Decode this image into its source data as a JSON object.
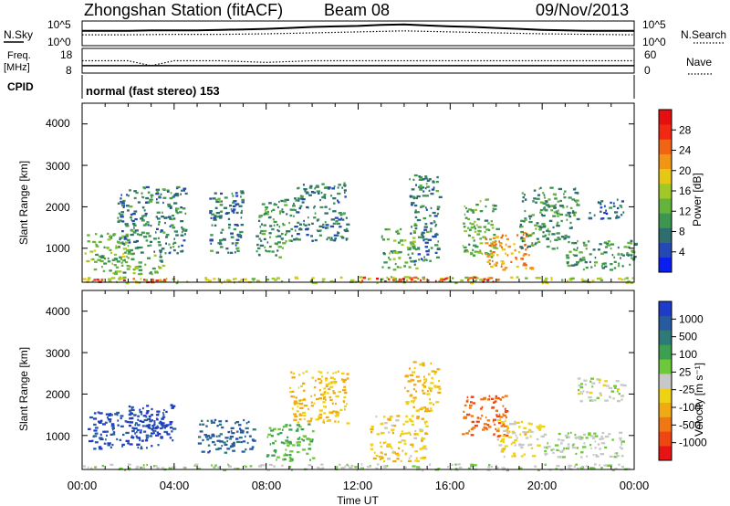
{
  "header": {
    "station": "Zhongshan Station (fitACF)",
    "beam": "Beam 08",
    "date": "09/Nov/2013"
  },
  "chart_data": [
    {
      "type": "line",
      "panel": "noise",
      "left_label": "N.Sky",
      "right_label": "N.Search",
      "left_ticks": [
        "10^5",
        "10^0"
      ],
      "right_ticks": [
        "10^5",
        "10^0"
      ],
      "series": [
        {
          "name": "N.Sky",
          "style": "solid",
          "x": [
            0,
            1,
            2,
            3,
            4,
            5,
            6,
            7,
            8,
            9,
            10,
            11,
            12,
            13,
            14,
            15,
            16,
            17,
            18,
            19,
            20,
            21,
            22,
            23,
            24
          ],
          "y": [
            3.0,
            3.0,
            3.0,
            3.1,
            3.1,
            3.1,
            3.2,
            3.3,
            3.4,
            3.6,
            3.8,
            3.9,
            4.0,
            4.2,
            4.3,
            4.1,
            3.9,
            3.8,
            3.6,
            3.4,
            3.2,
            3.1,
            3.0,
            3.0,
            3.0
          ]
        },
        {
          "name": "N.Search",
          "style": "dotted",
          "x": [
            0,
            2,
            4,
            6,
            8,
            10,
            12,
            14,
            16,
            18,
            20,
            22,
            24
          ],
          "y": [
            2.2,
            2.2,
            2.3,
            2.3,
            2.4,
            2.6,
            2.8,
            3.0,
            2.8,
            2.6,
            2.4,
            2.3,
            2.2
          ]
        }
      ]
    },
    {
      "type": "line",
      "panel": "frequency",
      "left_label": "Freq.",
      "left_unit": "[MHz]",
      "right_label": "Nave",
      "left_ticks": [
        "18",
        "8"
      ],
      "right_ticks": [
        "60",
        "0"
      ],
      "series": [
        {
          "name": "Freq",
          "style": "solid",
          "x": [
            0,
            24
          ],
          "y": [
            11,
            11
          ]
        },
        {
          "name": "Nave",
          "style": "dotted",
          "x": [
            0,
            2,
            3,
            4,
            6,
            8,
            10,
            12,
            14,
            16,
            18,
            20,
            22,
            24
          ],
          "y": [
            30,
            30,
            18,
            30,
            30,
            26,
            30,
            30,
            30,
            30,
            30,
            30,
            30,
            30
          ]
        }
      ]
    },
    {
      "type": "text",
      "panel": "cpid",
      "left_label": "CPID",
      "value": "normal (fast stereo) 153"
    },
    {
      "type": "heatmap",
      "panel": "power",
      "ylabel": "Slant Range [km]",
      "y_ticks": [
        "4000",
        "3000",
        "2000",
        "1000"
      ],
      "ylim": [
        180,
        4500
      ],
      "colorbar_label": "Power [dB]",
      "colorbar_ticks": [
        "28",
        "24",
        "20",
        "16",
        "12",
        "8",
        "4"
      ],
      "colorbar_colors": [
        "#0a1ef0",
        "#2448b4",
        "#2e6e6e",
        "#3c9650",
        "#64b43c",
        "#a0c828",
        "#e6c814",
        "#f09614",
        "#f06414",
        "#f02814",
        "#e60f0f"
      ],
      "blobs": [
        {
          "t0": 0.0,
          "t1": 24.0,
          "r0": 180,
          "r1": 330,
          "v": 16
        },
        {
          "t0": 0.2,
          "t1": 4.0,
          "r0": 200,
          "r1": 300,
          "v": 26
        },
        {
          "t0": 12.0,
          "t1": 19.0,
          "r0": 200,
          "r1": 320,
          "v": 26
        },
        {
          "t0": 0.0,
          "t1": 2.0,
          "r0": 700,
          "r1": 1400,
          "v": 14
        },
        {
          "t0": 0.5,
          "t1": 3.5,
          "r0": 400,
          "r1": 900,
          "v": 12
        },
        {
          "t0": 1.5,
          "t1": 4.5,
          "r0": 900,
          "r1": 2500,
          "v": 8
        },
        {
          "t0": 5.5,
          "t1": 7.0,
          "r0": 900,
          "r1": 2400,
          "v": 8
        },
        {
          "t0": 7.5,
          "t1": 9.0,
          "r0": 800,
          "r1": 2200,
          "v": 10
        },
        {
          "t0": 9.0,
          "t1": 11.5,
          "r0": 1200,
          "r1": 2600,
          "v": 8
        },
        {
          "t0": 13.0,
          "t1": 14.5,
          "r0": 500,
          "r1": 1500,
          "v": 12
        },
        {
          "t0": 14.2,
          "t1": 15.5,
          "r0": 700,
          "r1": 2800,
          "v": 8
        },
        {
          "t0": 16.5,
          "t1": 18.0,
          "r0": 800,
          "r1": 2200,
          "v": 12
        },
        {
          "t0": 17.5,
          "t1": 19.5,
          "r0": 500,
          "r1": 1400,
          "v": 22
        },
        {
          "t0": 19.0,
          "t1": 21.5,
          "r0": 1000,
          "r1": 2500,
          "v": 10
        },
        {
          "t0": 21.0,
          "t1": 24.0,
          "r0": 500,
          "r1": 1200,
          "v": 10
        },
        {
          "t0": 22.0,
          "t1": 23.5,
          "r0": 1700,
          "r1": 2200,
          "v": 6
        }
      ]
    },
    {
      "type": "heatmap",
      "panel": "velocity",
      "ylabel": "Slant Range [km]",
      "y_ticks": [
        "4000",
        "3000",
        "2000",
        "1000"
      ],
      "ylim": [
        180,
        4500
      ],
      "colorbar_label": "Velocity [m s⁻¹]",
      "colorbar_ticks": [
        "1000",
        "500",
        "100",
        "25",
        "-25",
        "-100",
        "-500",
        "-1000"
      ],
      "colorbar_colors": [
        "#1e3cc8",
        "#285aa0",
        "#2e7a78",
        "#3ca050",
        "#6ec83c",
        "#c8c8c8",
        "#f0d214",
        "#f0aa14",
        "#f07814",
        "#f04614",
        "#e61414"
      ],
      "blobs": [
        {
          "t0": 0.0,
          "t1": 24.0,
          "r0": 180,
          "r1": 330,
          "v": 60
        },
        {
          "t0": 0.2,
          "t1": 3.5,
          "r0": 700,
          "r1": 1600,
          "v": 800
        },
        {
          "t0": 2.0,
          "t1": 4.0,
          "r0": 900,
          "r1": 1800,
          "v": 900
        },
        {
          "t0": 5.0,
          "t1": 7.5,
          "r0": 600,
          "r1": 1400,
          "v": 700
        },
        {
          "t0": 8.0,
          "t1": 10.0,
          "r0": 400,
          "r1": 1300,
          "v": 300
        },
        {
          "t0": 9.0,
          "t1": 11.5,
          "r0": 1300,
          "r1": 2600,
          "v": -300
        },
        {
          "t0": 12.5,
          "t1": 15.0,
          "r0": 400,
          "r1": 1500,
          "v": -200
        },
        {
          "t0": 14.0,
          "t1": 15.5,
          "r0": 1600,
          "r1": 2800,
          "v": -300
        },
        {
          "t0": 16.5,
          "t1": 18.5,
          "r0": 1000,
          "r1": 2000,
          "v": -600
        },
        {
          "t0": 18.0,
          "t1": 20.0,
          "r0": 500,
          "r1": 1400,
          "v": -150
        },
        {
          "t0": 20.0,
          "t1": 23.5,
          "r0": 500,
          "r1": 1100,
          "v": 60
        },
        {
          "t0": 21.5,
          "t1": 23.5,
          "r0": 1800,
          "r1": 2400,
          "v": 0
        }
      ]
    }
  ],
  "x_axis": {
    "label": "Time UT",
    "ticks": [
      "00:00",
      "04:00",
      "08:00",
      "12:00",
      "16:00",
      "20:00",
      "00:00"
    ]
  }
}
